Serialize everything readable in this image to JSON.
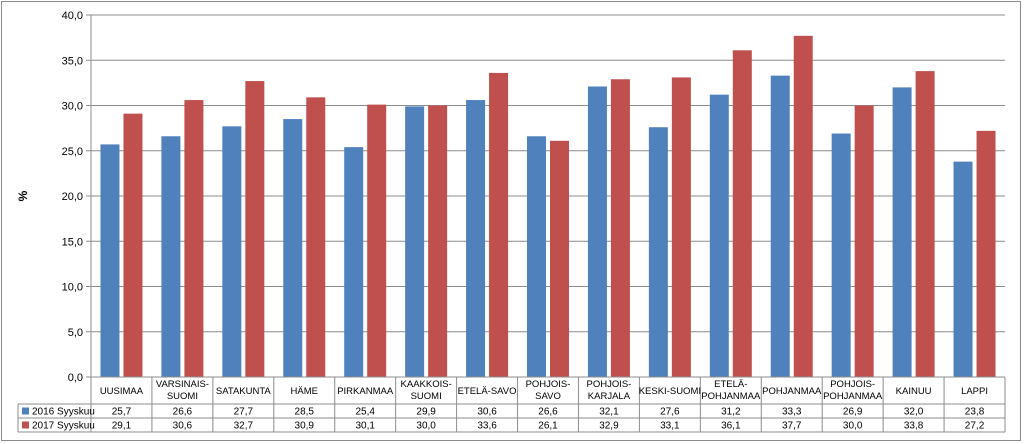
{
  "chart_data": {
    "type": "bar",
    "ylabel": "%",
    "ylim": [
      0,
      40
    ],
    "ytick_labels": [
      "0,0",
      "5,0",
      "10,0",
      "15,0",
      "20,0",
      "25,0",
      "30,0",
      "35,0",
      "40,0"
    ],
    "ytick_values": [
      0,
      5,
      10,
      15,
      20,
      25,
      30,
      35,
      40
    ],
    "grid": true,
    "legend_placement": "bottom-left (in data table)",
    "categories": [
      [
        "UUSIMAA"
      ],
      [
        "VARSINAIS-",
        "SUOMI"
      ],
      [
        "SATAKUNTA"
      ],
      [
        "HÄME"
      ],
      [
        "PIRKANMAA"
      ],
      [
        "KAAKKOIS-",
        "SUOMI"
      ],
      [
        "ETELÄ-SAVO"
      ],
      [
        "POHJOIS-",
        "SAVO"
      ],
      [
        "POHJOIS-",
        "KARJALA"
      ],
      [
        "KESKI-SUOMI"
      ],
      [
        "ETELÄ-",
        "POHJANMAA"
      ],
      [
        "POHJANMAA"
      ],
      [
        "POHJOIS-",
        "POHJANMAA"
      ],
      [
        "KAINUU"
      ],
      [
        "LAPPI"
      ]
    ],
    "series": [
      {
        "name": "2016 Syyskuu",
        "color": "#4f81bd",
        "values": [
          25.7,
          26.6,
          27.7,
          28.5,
          25.4,
          29.9,
          30.6,
          26.6,
          32.1,
          27.6,
          31.2,
          33.3,
          26.9,
          32.0,
          23.8
        ],
        "labels": [
          "25,7",
          "26,6",
          "27,7",
          "28,5",
          "25,4",
          "29,9",
          "30,6",
          "26,6",
          "32,1",
          "27,6",
          "31,2",
          "33,3",
          "26,9",
          "32,0",
          "23,8"
        ]
      },
      {
        "name": "2017 Syyskuu",
        "color": "#c0504d",
        "values": [
          29.1,
          30.6,
          32.7,
          30.9,
          30.1,
          30.0,
          33.6,
          26.1,
          32.9,
          33.1,
          36.1,
          37.7,
          30.0,
          33.8,
          27.2
        ],
        "labels": [
          "29,1",
          "30,6",
          "32,7",
          "30,9",
          "30,1",
          "30,0",
          "33,6",
          "26,1",
          "32,9",
          "33,1",
          "36,1",
          "37,7",
          "30,0",
          "33,8",
          "27,2"
        ]
      }
    ]
  }
}
